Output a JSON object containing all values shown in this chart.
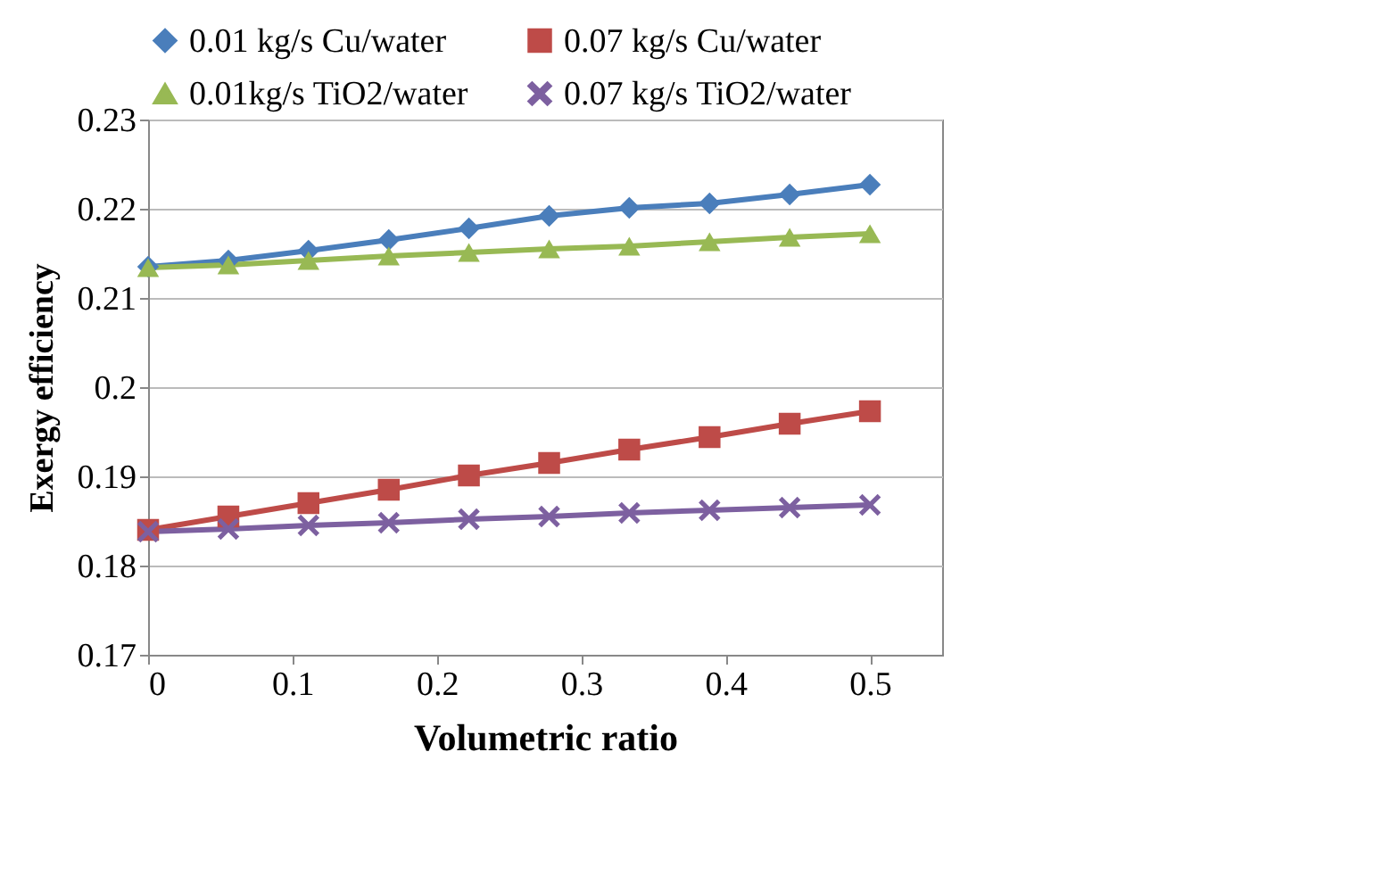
{
  "chart_data": {
    "type": "line",
    "xlabel": "Volumetric ratio",
    "ylabel": "Exergy efficiency",
    "x": [
      0,
      0.0556,
      0.1111,
      0.1667,
      0.2222,
      0.2778,
      0.3333,
      0.3889,
      0.4444,
      0.5
    ],
    "series": [
      {
        "name": "0.01 kg/s Cu/water",
        "color": "#4a7ebb",
        "marker": "diamond",
        "values": [
          0.2135,
          0.2142,
          0.2153,
          0.2165,
          0.2178,
          0.2192,
          0.2201,
          0.2206,
          0.2216,
          0.2227
        ]
      },
      {
        "name": "0.07 kg/s Cu/water",
        "color": "#be4b48",
        "marker": "square",
        "values": [
          0.184,
          0.1855,
          0.187,
          0.1885,
          0.1901,
          0.1915,
          0.193,
          0.1944,
          0.1959,
          0.1973
        ]
      },
      {
        "name": "0.01kg/s TiO2/water",
        "color": "#98b954",
        "marker": "triangle",
        "values": [
          0.2134,
          0.2137,
          0.2142,
          0.2147,
          0.2151,
          0.2155,
          0.2158,
          0.2163,
          0.2168,
          0.2172
        ]
      },
      {
        "name": "0.07 kg/s TiO2/water",
        "color": "#7d60a0",
        "marker": "cross",
        "values": [
          0.1838,
          0.1841,
          0.1845,
          0.1848,
          0.1852,
          0.1855,
          0.1859,
          0.1862,
          0.1865,
          0.1868
        ]
      }
    ],
    "xlim": [
      0,
      0.55
    ],
    "xticks": [
      0,
      0.1,
      0.2,
      0.3,
      0.4,
      0.5
    ],
    "ylim": [
      0.17,
      0.23
    ],
    "yticks": [
      0.17,
      0.18,
      0.19,
      0.2,
      0.21,
      0.22,
      0.23
    ],
    "grid": "y",
    "legend": "top",
    "line_style": "solid"
  }
}
